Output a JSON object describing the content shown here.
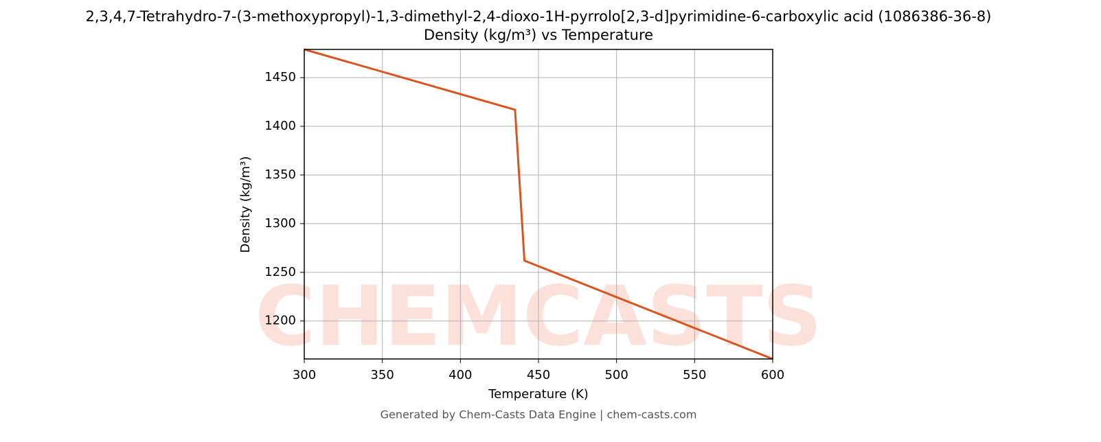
{
  "chart_data": {
    "type": "line",
    "title": "2,3,4,7-Tetrahydro-7-(3-methoxypropyl)-1,3-dimethyl-2,4-dioxo-1H-pyrrolo[2,3-d]pyrimidine-6-carboxylic acid (1086386-36-8)",
    "subtitle": "Density (kg/m³) vs Temperature",
    "x_label": "Temperature (K)",
    "y_label": "Density (kg/m³)",
    "footer": "Generated by Chem-Casts Data Engine | chem-casts.com",
    "watermark": "CHEMCASTS",
    "x": [
      300,
      435,
      441,
      600
    ],
    "series": [
      {
        "name": "Density",
        "color": "#d9541e",
        "values": [
          1479,
          1417,
          1262,
          1161
        ]
      }
    ],
    "xlim": [
      300,
      600
    ],
    "xticks": [
      300,
      350,
      400,
      450,
      500,
      550,
      600
    ],
    "ylim": [
      1161,
      1479
    ],
    "yticks": [
      1200,
      1250,
      1300,
      1350,
      1400,
      1450
    ],
    "grid": true
  }
}
